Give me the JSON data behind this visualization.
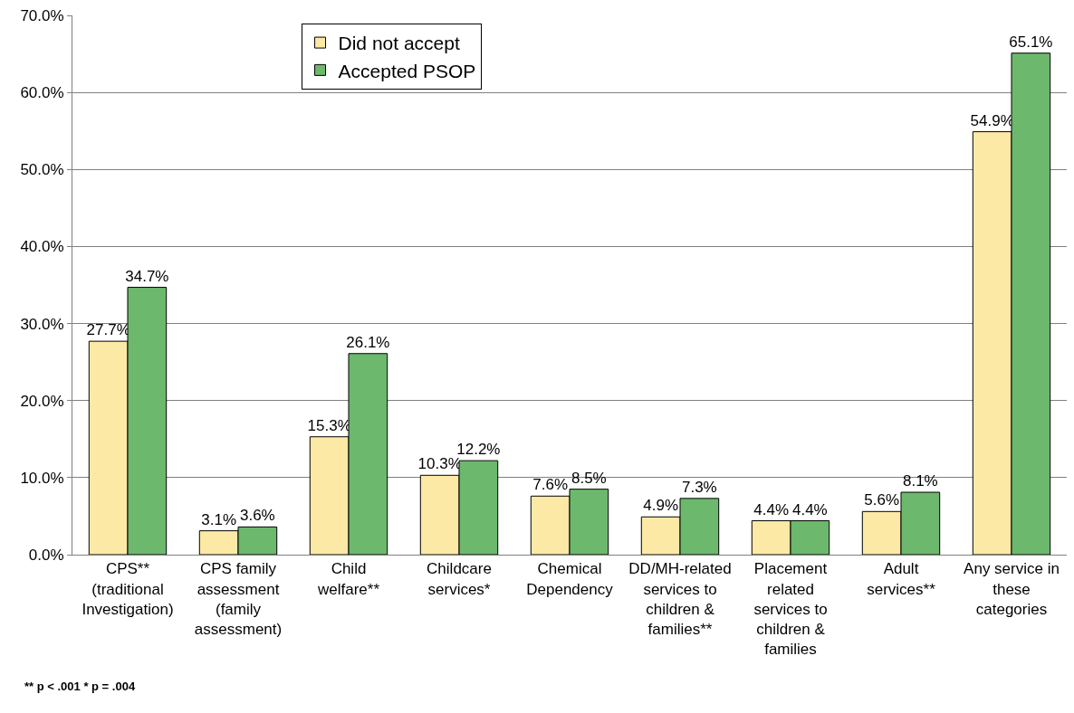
{
  "chart_data": {
    "type": "bar",
    "categories": [
      "CPS** (traditional Investigation)",
      "CPS family assessment (family assessment)",
      "Child welfare**",
      "Childcare services*",
      "Chemical Dependency",
      "DD/MH-related services to children & families**",
      "Placement related services to children & families",
      "Adult services**",
      "Any service in these categories"
    ],
    "series": [
      {
        "name": "Did not accept",
        "color": "#fde9a6",
        "values": [
          27.7,
          3.1,
          15.3,
          10.3,
          7.6,
          4.9,
          4.4,
          5.6,
          54.9
        ],
        "value_labels": [
          "27.7%",
          "3.1%",
          "15.3%",
          "10.3%",
          "7.6%",
          "4.9%",
          "4.4%",
          "5.6%",
          "54.9%"
        ]
      },
      {
        "name": "Accepted PSOP",
        "color": "#6cb86c",
        "values": [
          34.7,
          3.6,
          26.1,
          12.2,
          8.5,
          7.3,
          4.4,
          8.1,
          65.1
        ],
        "value_labels": [
          "34.7%",
          "3.6%",
          "26.1%",
          "12.2%",
          "8.5%",
          "7.3%",
          "4.4%",
          "8.1%",
          "65.1%"
        ]
      }
    ],
    "ylim": [
      0,
      70
    ],
    "yticks": [
      {
        "value": 0,
        "label": "0.0%"
      },
      {
        "value": 10,
        "label": "10.0%"
      },
      {
        "value": 20,
        "label": "20.0%"
      },
      {
        "value": 30,
        "label": "30.0%"
      },
      {
        "value": 40,
        "label": "40.0%"
      },
      {
        "value": 50,
        "label": "50.0%"
      },
      {
        "value": 60,
        "label": "60.0%"
      },
      {
        "value": 70,
        "label": "70.0%"
      }
    ],
    "grid": "y",
    "legend": "top",
    "annotations": [
      "** p < .001 * p = .004"
    ]
  }
}
